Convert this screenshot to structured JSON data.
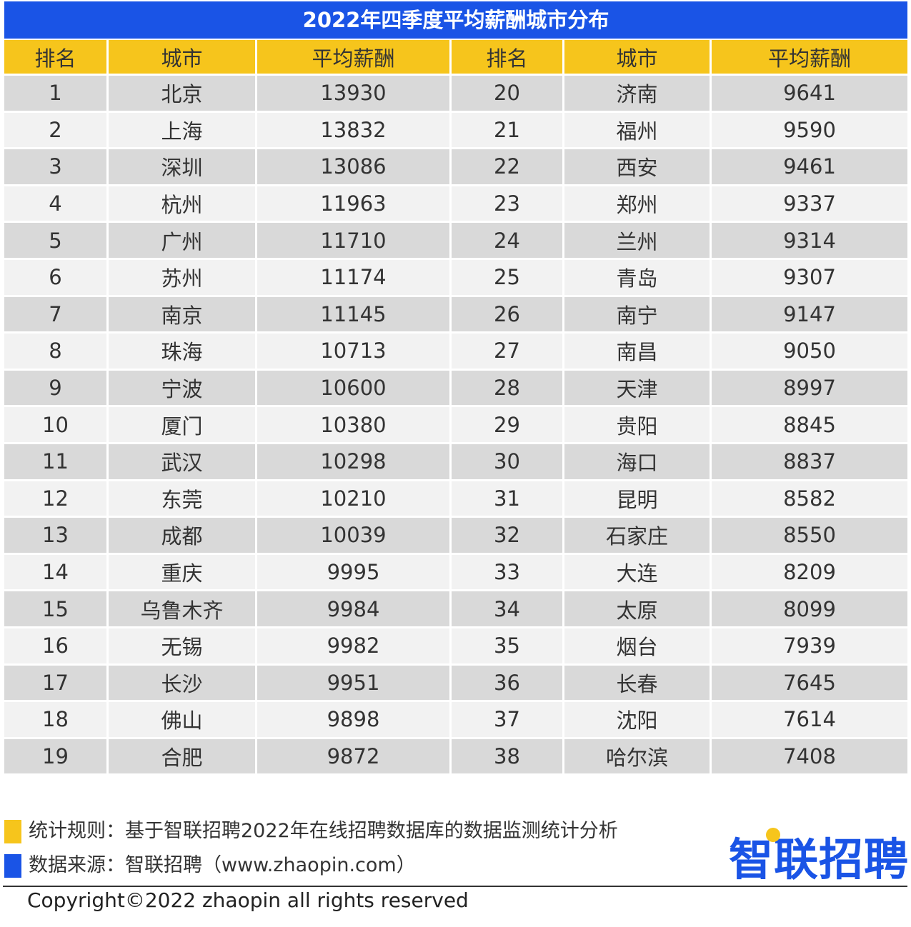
{
  "title": "2022年四季度平均薪酬城市分布",
  "chart_data": {
    "type": "table",
    "title": "2022年四季度平均薪酬城市分布",
    "columns": [
      "排名",
      "城市",
      "平均薪酬",
      "排名",
      "城市",
      "平均薪酬"
    ],
    "rows": [
      [
        1,
        "北京",
        13930,
        20,
        "济南",
        9641
      ],
      [
        2,
        "上海",
        13832,
        21,
        "福州",
        9590
      ],
      [
        3,
        "深圳",
        13086,
        22,
        "西安",
        9461
      ],
      [
        4,
        "杭州",
        11963,
        23,
        "郑州",
        9337
      ],
      [
        5,
        "广州",
        11710,
        24,
        "兰州",
        9314
      ],
      [
        6,
        "苏州",
        11174,
        25,
        "青岛",
        9307
      ],
      [
        7,
        "南京",
        11145,
        26,
        "南宁",
        9147
      ],
      [
        8,
        "珠海",
        10713,
        27,
        "南昌",
        9050
      ],
      [
        9,
        "宁波",
        10600,
        28,
        "天津",
        8997
      ],
      [
        10,
        "厦门",
        10380,
        29,
        "贵阳",
        8845
      ],
      [
        11,
        "武汉",
        10298,
        30,
        "海口",
        8837
      ],
      [
        12,
        "东莞",
        10210,
        31,
        "昆明",
        8582
      ],
      [
        13,
        "成都",
        10039,
        32,
        "石家庄",
        8550
      ],
      [
        14,
        "重庆",
        9995,
        33,
        "大连",
        8209
      ],
      [
        15,
        "乌鲁木齐",
        9984,
        34,
        "太原",
        8099
      ],
      [
        16,
        "无锡",
        9982,
        35,
        "烟台",
        7939
      ],
      [
        17,
        "长沙",
        9951,
        36,
        "长春",
        7645
      ],
      [
        18,
        "佛山",
        9898,
        37,
        "沈阳",
        7614
      ],
      [
        19,
        "合肥",
        9872,
        38,
        "哈尔滨",
        7408
      ]
    ]
  },
  "notes": [
    {
      "text": "统计规则：基于智联招聘2022年在线招聘数据库的数据监测统计分析",
      "color": "#f6c51c"
    },
    {
      "text": "数据来源：智联招聘（www.zhaopin.com）",
      "color": "#1a54e6"
    }
  ],
  "logo_text": "智联招聘",
  "copyright": "Copyright©2022 zhaopin all rights reserved",
  "colors": {
    "title_bg": "#1a54e6",
    "header_bg": "#f6c51c",
    "row_dark": "#d9d9d9",
    "row_light": "#f2f2f2"
  }
}
